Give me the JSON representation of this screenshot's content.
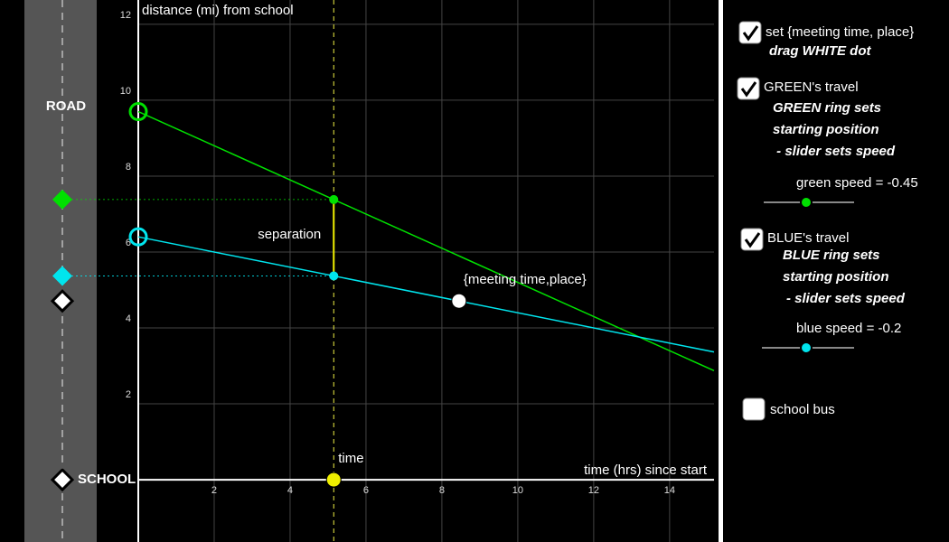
{
  "road": {
    "label": "ROAD",
    "school_label": "SCHOOL"
  },
  "graph": {
    "y_axis_label": "distance (mi) from school",
    "x_axis_label": "time (hrs) since start",
    "xlim": [
      0,
      15.17
    ],
    "ylim": [
      -1.64,
      12.64
    ],
    "xticks": [
      2,
      4,
      6,
      8,
      10,
      12,
      14
    ],
    "yticks": [
      2,
      4,
      6,
      8,
      10,
      12
    ],
    "time": 5.15,
    "time_label": "time",
    "separation_label": "separation",
    "meeting": {
      "label": "{meeting time,place}",
      "time": 8.45,
      "distance": 4.71
    },
    "green": {
      "start": 9.7,
      "speed": {
        "value": -0.45,
        "label": "green speed = -0.45"
      },
      "color": "#00e000"
    },
    "blue": {
      "start": 6.4,
      "speed": {
        "value": -0.2,
        "label": "blue speed = -0.2"
      },
      "color": "#00e5ee"
    }
  },
  "panel": {
    "meeting_box": {
      "label": "set {meeting time, place}",
      "hint": "drag WHITE dot",
      "checked": true
    },
    "green_box": {
      "label": "GREEN's travel",
      "hints": [
        "GREEN ring sets",
        "starting position",
        " - slider sets speed"
      ],
      "checked": true
    },
    "blue_box": {
      "label": "BLUE's travel",
      "hints": [
        "BLUE ring sets",
        "starting position",
        "- slider sets speed"
      ],
      "checked": true
    },
    "bus_box": {
      "label": "school bus",
      "checked": false
    }
  }
}
